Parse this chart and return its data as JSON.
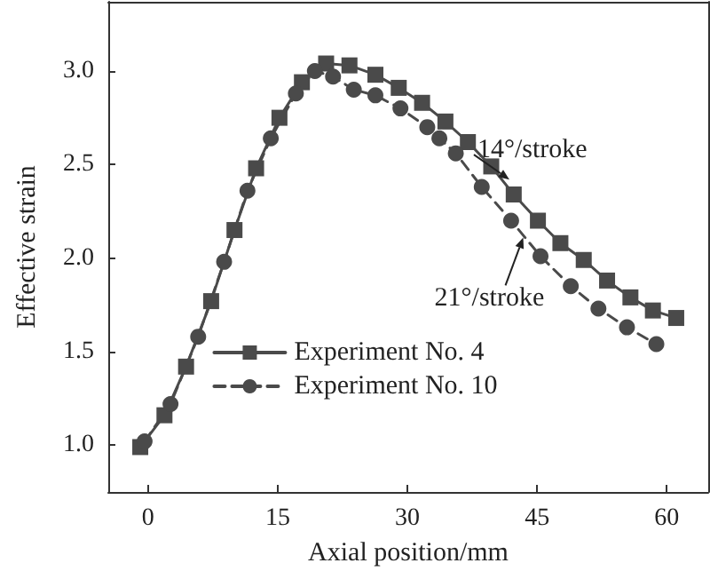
{
  "chart_data": {
    "type": "line",
    "xlabel": "Axial position/mm",
    "ylabel": "Effective strain",
    "xlim": [
      -4.6,
      64.8
    ],
    "xticks": [
      0,
      15,
      30,
      45,
      60
    ],
    "ylim": [
      0.75,
      3.37
    ],
    "yticks": [
      {
        "value": 1,
        "label": "1.0"
      },
      1.5,
      {
        "value": 2,
        "label": "2.0"
      },
      2.5,
      {
        "value": 3,
        "label": "3.0"
      }
    ],
    "grid": false,
    "legend": "bottom",
    "series": [
      {
        "name": "Experiment No. 4",
        "color": "#4a4a4a",
        "marker": "square",
        "line_style": "solid",
        "x": [
          -0.9,
          1.9,
          4.4,
          7.3,
          10.0,
          12.5,
          15.2,
          17.8,
          20.6,
          23.3,
          26.3,
          29.0,
          31.7,
          34.4,
          37.0,
          39.7,
          42.3,
          45.1,
          47.7,
          50.4,
          53.1,
          55.8,
          58.4,
          61.1
        ],
        "values": [
          0.99,
          1.16,
          1.42,
          1.77,
          2.15,
          2.48,
          2.75,
          2.94,
          3.04,
          3.03,
          2.98,
          2.91,
          2.83,
          2.73,
          2.62,
          2.49,
          2.34,
          2.2,
          2.08,
          1.99,
          1.88,
          1.79,
          1.72,
          1.68
        ]
      },
      {
        "name": "Experiment No. 10",
        "color": "#4a4a4a",
        "marker": "circle",
        "line_style": "dashed",
        "x": [
          -0.4,
          2.6,
          5.8,
          8.8,
          11.5,
          14.2,
          17.1,
          19.3,
          21.4,
          23.8,
          26.3,
          29.2,
          32.3,
          33.7,
          35.6,
          38.6,
          42.0,
          45.4,
          48.9,
          52.1,
          55.4,
          58.8
        ],
        "values": [
          1.02,
          1.22,
          1.58,
          1.98,
          2.36,
          2.64,
          2.88,
          3.0,
          2.97,
          2.9,
          2.87,
          2.8,
          2.7,
          2.64,
          2.56,
          2.38,
          2.2,
          2.01,
          1.85,
          1.73,
          1.63,
          1.54
        ]
      }
    ],
    "annotations": [
      {
        "text": "14°/stroke",
        "x": 41.8,
        "y": 2.42
      },
      {
        "text": "21°/stroke",
        "x": 43.4,
        "y": 2.11
      }
    ]
  }
}
